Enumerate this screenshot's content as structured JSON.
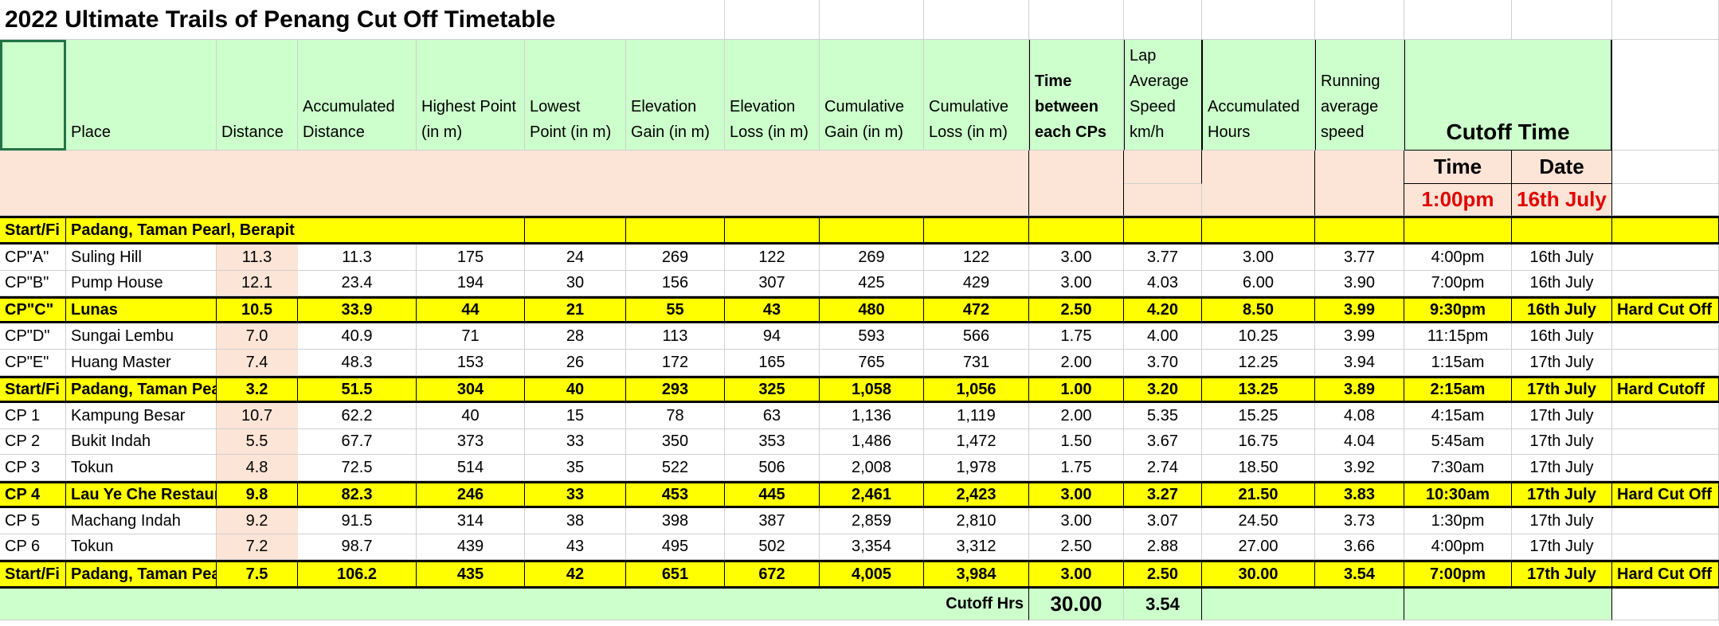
{
  "title": "2022 Ultimate Trails of Penang Cut Off Timetable",
  "headers": [
    "Place",
    "Distance",
    "Accumulated Distance",
    "Highest Point (in m)",
    "Lowest Point (in m)",
    "Elevation Gain (in m)",
    "Elevation Loss (in m)",
    "Cumulative Gain (in m)",
    "Cumulative Loss (in m)",
    "Time between each CPs",
    "Lap Average Speed km/h",
    "Accumulated Hours",
    "Running average speed",
    "Cutoff  Time"
  ],
  "subheaders": [
    "Time",
    "Date"
  ],
  "start": {
    "time": "1:00pm",
    "date": "16th July"
  },
  "rows": [
    [
      "Start/Fi",
      "Padang, Taman Pearl, Berapit"
    ],
    [
      "CP\"A\"",
      "Suling Hill",
      "11.3",
      "11.3",
      "175",
      "24",
      "269",
      "122",
      "269",
      "122",
      "3.00",
      "3.77",
      "3.00",
      "3.77",
      "4:00pm",
      "16th July"
    ],
    [
      "CP\"B\"",
      "Pump House",
      "12.1",
      "23.4",
      "194",
      "30",
      "156",
      "307",
      "425",
      "429",
      "3.00",
      "4.03",
      "6.00",
      "3.90",
      "7:00pm",
      "16th July"
    ],
    [
      "CP\"C\"",
      "Lunas",
      "10.5",
      "33.9",
      "44",
      "21",
      "55",
      "43",
      "480",
      "472",
      "2.50",
      "4.20",
      "8.50",
      "3.99",
      "9:30pm",
      "16th July",
      "Hard Cut Off"
    ],
    [
      "CP\"D\"",
      "Sungai Lembu",
      "7.0",
      "40.9",
      "71",
      "28",
      "113",
      "94",
      "593",
      "566",
      "1.75",
      "4.00",
      "10.25",
      "3.99",
      "11:15pm",
      "16th July"
    ],
    [
      "CP\"E\"",
      "Huang Master",
      "7.4",
      "48.3",
      "153",
      "26",
      "172",
      "165",
      "765",
      "731",
      "2.00",
      "3.70",
      "12.25",
      "3.94",
      "1:15am",
      "17th July"
    ],
    [
      "Start/Fi",
      "Padang, Taman Pea",
      "3.2",
      "51.5",
      "304",
      "40",
      "293",
      "325",
      "1,058",
      "1,056",
      "1.00",
      "3.20",
      "13.25",
      "3.89",
      "2:15am",
      "17th July",
      "Hard Cutoff"
    ],
    [
      "CP 1",
      "Kampung Besar",
      "10.7",
      "62.2",
      "40",
      "15",
      "78",
      "63",
      "1,136",
      "1,119",
      "2.00",
      "5.35",
      "15.25",
      "4.08",
      "4:15am",
      "17th July"
    ],
    [
      "CP 2",
      "Bukit Indah",
      "5.5",
      "67.7",
      "373",
      "33",
      "350",
      "353",
      "1,486",
      "1,472",
      "1.50",
      "3.67",
      "16.75",
      "4.04",
      "5:45am",
      "17th July"
    ],
    [
      "CP 3",
      "Tokun",
      "4.8",
      "72.5",
      "514",
      "35",
      "522",
      "506",
      "2,008",
      "1,978",
      "1.75",
      "2.74",
      "18.50",
      "3.92",
      "7:30am",
      "17th July"
    ],
    [
      "CP 4",
      "Lau Ye Che Restaur",
      "9.8",
      "82.3",
      "246",
      "33",
      "453",
      "445",
      "2,461",
      "2,423",
      "3.00",
      "3.27",
      "21.50",
      "3.83",
      "10:30am",
      "17th July",
      "Hard Cut Off"
    ],
    [
      "CP 5",
      "Machang Indah",
      "9.2",
      "91.5",
      "314",
      "38",
      "398",
      "387",
      "2,859",
      "2,810",
      "3.00",
      "3.07",
      "24.50",
      "3.73",
      "1:30pm",
      "17th July"
    ],
    [
      "CP 6",
      "Tokun",
      "7.2",
      "98.7",
      "439",
      "43",
      "495",
      "502",
      "3,354",
      "3,312",
      "2.50",
      "2.88",
      "27.00",
      "3.66",
      "4:00pm",
      "17th July"
    ],
    [
      "Start/Fi",
      "Padang, Taman Pea",
      "7.5",
      "106.2",
      "435",
      "42",
      "651",
      "672",
      "4,005",
      "3,984",
      "3.00",
      "2.50",
      "30.00",
      "3.54",
      "7:00pm",
      "17th July",
      "Hard Cut Off"
    ]
  ],
  "footer": {
    "label": "Cutoff Hrs",
    "hours": "30.00",
    "speed": "3.54"
  }
}
